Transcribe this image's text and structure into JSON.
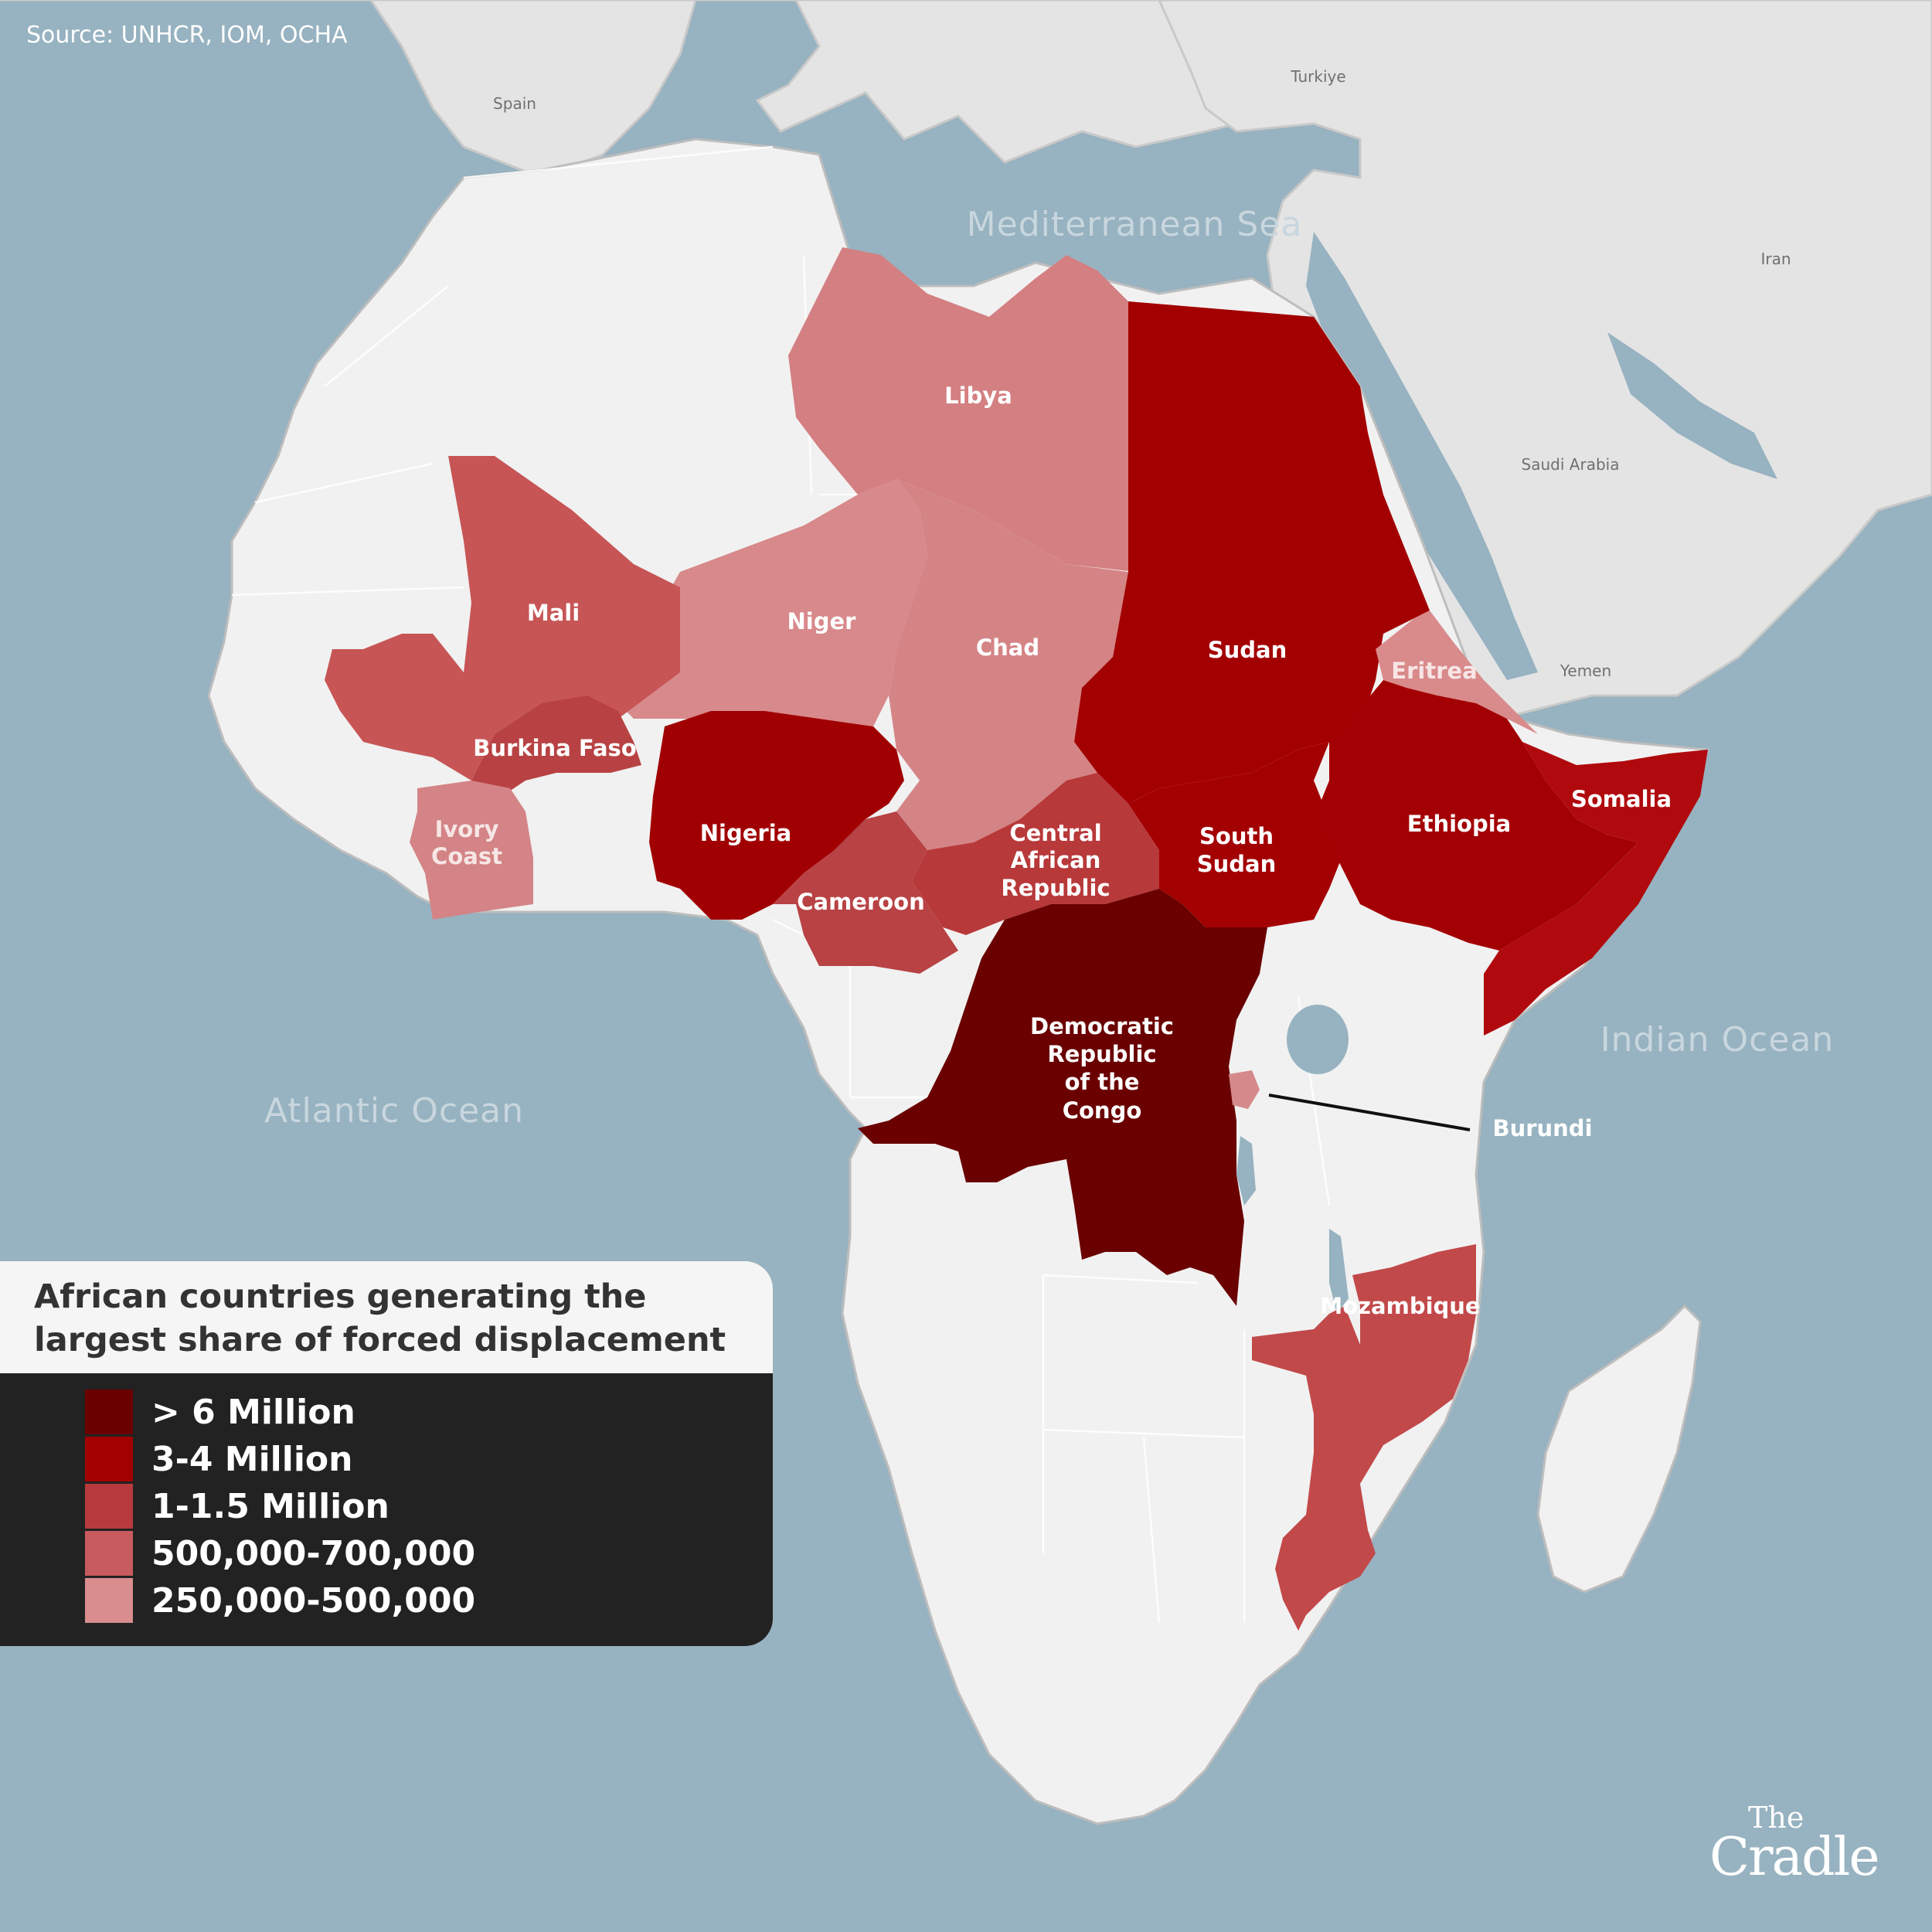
{
  "source": "Source: UNHCR, IOM, OCHA",
  "map": {
    "seas": [
      "Mediterranean Sea",
      "Indian Ocean",
      "Atlantic Ocean"
    ],
    "places": [
      "Spain",
      "Turkiye",
      "Iran",
      "Saudi Arabia",
      "Yemen"
    ]
  },
  "countries": {
    "libya": "Libya",
    "niger": "Niger",
    "chad": "Chad",
    "mali": "Mali",
    "burkina_faso": "Burkina Faso",
    "ivory_coast": [
      "Ivory",
      "Coast"
    ],
    "nigeria": "Nigeria",
    "cameroon": "Cameroon",
    "central_african_republic": [
      "Central",
      "African",
      "Republic"
    ],
    "sudan": "Sudan",
    "south_sudan": [
      "South",
      "Sudan"
    ],
    "eritrea": "Eritrea",
    "ethiopia": "Ethiopia",
    "somalia": "Somalia",
    "drc": [
      "Democratic",
      "Republic",
      "of the",
      "Congo"
    ],
    "burundi": "Burundi",
    "mozambique": "Mozambique"
  },
  "legend": {
    "title": "African countries generating the largest share of forced displacement",
    "items": [
      {
        "label": "> 6 Million",
        "color": "#6a0000"
      },
      {
        "label": "3-4 Million",
        "color": "#a30002"
      },
      {
        "label": "1-1.5 Million",
        "color": "#b83a3c"
      },
      {
        "label": "500,000-700,000",
        "color": "#c75b5d"
      },
      {
        "label": "250,000-500,000",
        "color": "#d98d8e"
      }
    ]
  },
  "country_categories": {
    "Democratic Republic of the Congo": "> 6 Million",
    "Sudan": "3-4 Million",
    "South Sudan": "3-4 Million",
    "Ethiopia": "3-4 Million",
    "Somalia": "3-4 Million",
    "Nigeria": "3-4 Million",
    "Burkina Faso": "1-1.5 Million",
    "Cameroon": "1-1.5 Million",
    "Central African Republic": "1-1.5 Million",
    "Mali": "500,000-700,000",
    "Mozambique": "500,000-700,000",
    "Libya": "250,000-500,000",
    "Niger": "250,000-500,000",
    "Chad": "250,000-500,000",
    "Ivory Coast": "250,000-500,000",
    "Eritrea": "250,000-500,000",
    "Burundi": "250,000-500,000"
  },
  "colors": {
    "ocean": "#97b2c0",
    "land": "#e4e4e4",
    "africa_base": "#f1f1f1",
    "legend_background": "#222222"
  },
  "logo": {
    "top": "The",
    "main": "Cradle"
  }
}
